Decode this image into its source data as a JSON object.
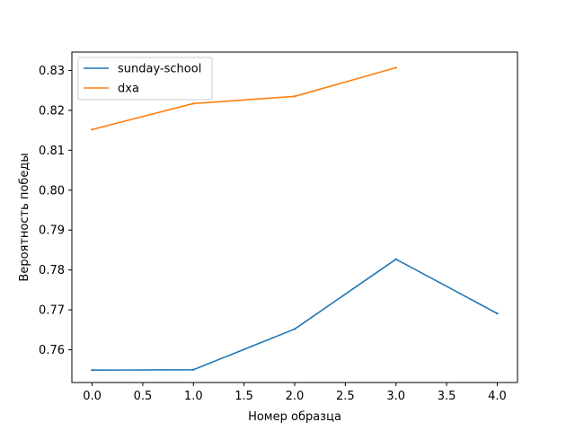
{
  "chart_data": {
    "type": "line",
    "title": "",
    "xlabel": "Номер образца",
    "ylabel": "Вероятность победы",
    "xlim": [
      -0.2,
      4.2
    ],
    "ylim": [
      0.7518,
      0.8346
    ],
    "xticks": [
      0.0,
      0.5,
      1.0,
      1.5,
      2.0,
      2.5,
      3.0,
      3.5,
      4.0
    ],
    "xtick_labels": [
      "0.0",
      "0.5",
      "1.0",
      "1.5",
      "2.0",
      "2.5",
      "3.0",
      "3.5",
      "4.0"
    ],
    "yticks": [
      0.76,
      0.77,
      0.78,
      0.79,
      0.8,
      0.81,
      0.82,
      0.83
    ],
    "ytick_labels": [
      "0.76",
      "0.77",
      "0.78",
      "0.79",
      "0.80",
      "0.81",
      "0.82",
      "0.83"
    ],
    "grid": false,
    "legend_position": "upper-left",
    "series": [
      {
        "name": "sunday-school",
        "color": "#1f77b4",
        "x": [
          0,
          1,
          2,
          3,
          4
        ],
        "y": [
          0.7549,
          0.755,
          0.7652,
          0.7827,
          0.7691
        ]
      },
      {
        "name": "dxa",
        "color": "#ff7f0e",
        "x": [
          0,
          1,
          2,
          3
        ],
        "y": [
          0.8152,
          0.8217,
          0.8235,
          0.8307
        ]
      }
    ]
  }
}
